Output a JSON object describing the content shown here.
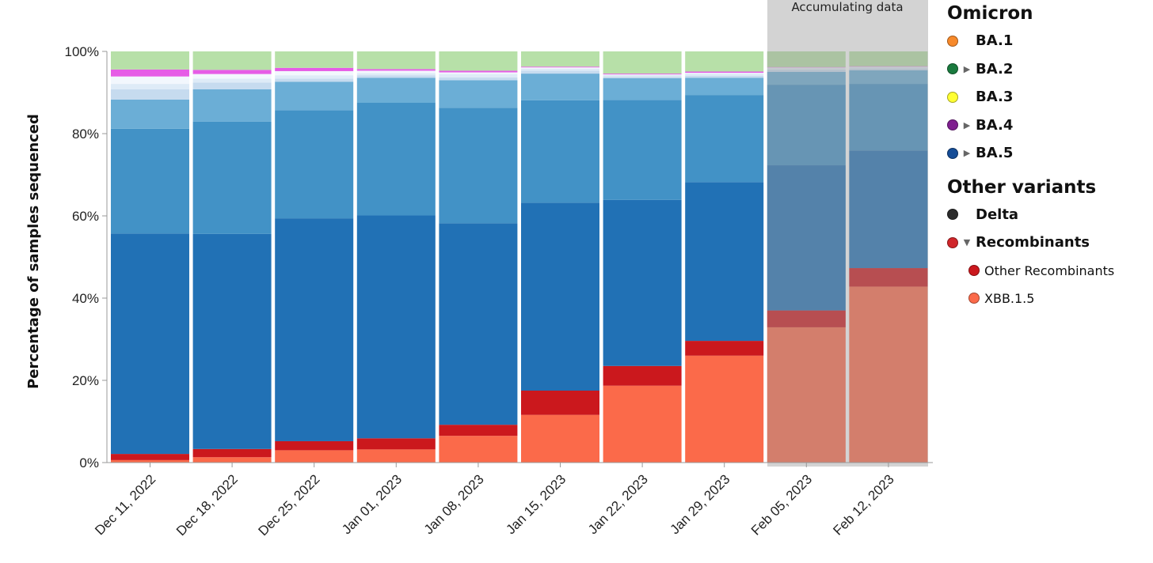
{
  "chart_data": {
    "type": "bar",
    "stacked": true,
    "normalized": true,
    "ylabel": "Percentage of samples sequenced",
    "yticks": [
      "0%",
      "20%",
      "40%",
      "60%",
      "80%",
      "100%"
    ],
    "ylim": [
      0,
      100
    ],
    "grid": false,
    "legend_position": "right",
    "categories": [
      "Dec 11, 2022",
      "Dec 18, 2022",
      "Dec 25, 2022",
      "Jan 01, 2023",
      "Jan 08, 2023",
      "Jan 15, 2023",
      "Jan 22, 2023",
      "Jan 29, 2023",
      "Feb 05, 2023",
      "Feb 12, 2023"
    ],
    "accumulating_data_label": "Accumulating data",
    "accumulating_categories": [
      "Feb 05, 2023",
      "Feb 12, 2023"
    ],
    "series": [
      {
        "name": "XBB.1.5",
        "color": "#fb6a4a",
        "values": [
          0.6,
          1.3,
          3.0,
          3.2,
          6.5,
          11.6,
          18.7,
          26.0,
          32.9,
          42.8
        ]
      },
      {
        "name": "Other Recombinants",
        "color": "#cb181d",
        "values": [
          1.5,
          2.0,
          2.2,
          2.7,
          2.7,
          5.9,
          4.8,
          3.6,
          4.1,
          4.5
        ]
      },
      {
        "values": [
          53.6,
          52.3,
          54.2,
          54.2,
          49.0,
          45.7,
          40.4,
          38.6,
          35.3,
          28.6
        ],
        "color": "#2171b5"
      },
      {
        "values": [
          25.5,
          27.3,
          26.3,
          27.4,
          28.1,
          24.9,
          24.3,
          21.2,
          19.6,
          16.2
        ],
        "color": "#4292c6"
      },
      {
        "values": [
          7.1,
          7.9,
          6.9,
          6.1,
          6.7,
          6.5,
          5.3,
          4.2,
          3.1,
          3.3
        ],
        "color": "#6baed6"
      },
      {
        "values": [
          2.5,
          1.6,
          0.8,
          0.6,
          0.7,
          0.7,
          0.4,
          0.5,
          0.5,
          0.4
        ],
        "color": "#c6dbef"
      },
      {
        "values": [
          1.3,
          1.0,
          0.8,
          0.5,
          0.8,
          0.5,
          0.4,
          0.5,
          0.4,
          0.4
        ],
        "color": "#deebf7"
      },
      {
        "values": [
          1.8,
          1.1,
          1.0,
          0.6,
          0.4,
          0.3,
          0.1,
          0.2,
          0.2,
          0.1
        ],
        "color": "#f2f7fd"
      },
      {
        "values": [
          1.7,
          1.0,
          0.8,
          0.4,
          0.4,
          0.2,
          0.2,
          0.3,
          0.1,
          0.1
        ],
        "color": "#e65ce6"
      },
      {
        "values": [
          4.4,
          4.5,
          4.0,
          4.3,
          4.7,
          3.7,
          5.4,
          4.9,
          3.8,
          3.6
        ],
        "color": "#b7e0a8"
      }
    ]
  },
  "legend": {
    "groups": [
      {
        "title": "Omicron",
        "items": [
          {
            "label": "BA.1",
            "color": "#f7892a",
            "caret": ""
          },
          {
            "label": "BA.2",
            "color": "#1a7a3e",
            "caret": "▶"
          },
          {
            "label": "BA.3",
            "color": "#ffff33",
            "caret": ""
          },
          {
            "label": "BA.4",
            "color": "#7f1f8f",
            "caret": "▶"
          },
          {
            "label": "BA.5",
            "color": "#154c96",
            "caret": "▶"
          }
        ]
      },
      {
        "title": "Other variants",
        "items": [
          {
            "label": "Delta",
            "color": "#2b2b2b",
            "caret": ""
          },
          {
            "label": "Recombinants",
            "color": "#d0252a",
            "caret": "▼",
            "children": [
              {
                "label": "Other Recombinants",
                "color": "#cb181d"
              },
              {
                "label": "XBB.1.5",
                "color": "#fb6a4a"
              }
            ]
          }
        ]
      }
    ]
  }
}
